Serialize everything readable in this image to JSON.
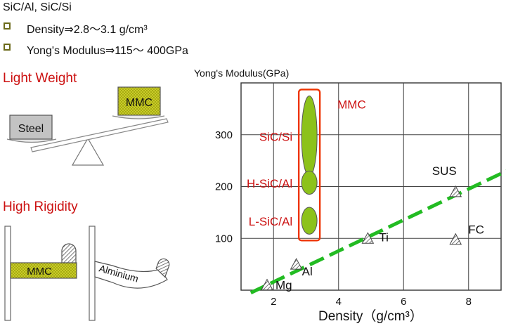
{
  "header": {
    "title": "SiC/Al,  SiC/Si"
  },
  "bullets": [
    {
      "text": "Density⇒2.8～3.1 g/cm³"
    },
    {
      "text": "Yong's Modulus⇒115～ 400GPa"
    }
  ],
  "light_weight": {
    "title": "Light Weight",
    "left_label": "Steel",
    "right_label": "MMC"
  },
  "high_rigidity": {
    "title": "High Rigidity",
    "beam1_label": "MMC",
    "beam2_label": "Alminium"
  },
  "colors": {
    "red": "#cc1111",
    "mmc_green": "#c8cc2a",
    "ellipse_green": "#8cc21a",
    "trend_green": "#22bb22"
  },
  "chart_data": {
    "type": "scatter",
    "ylabel": "Yong's Modulus(GPa)",
    "xlabel": "Density（g/cm³）",
    "xlim": [
      1,
      9
    ],
    "ylim": [
      0,
      400
    ],
    "x_ticks": [
      2,
      4,
      6,
      8
    ],
    "y_ticks": [
      100,
      200,
      300
    ],
    "grid": true,
    "points": [
      {
        "label": "Mg",
        "x": 1.8,
        "y": 10
      },
      {
        "label": "Al",
        "x": 2.7,
        "y": 50
      },
      {
        "label": "Ti",
        "x": 4.9,
        "y": 100
      },
      {
        "label": "SUS",
        "x": 7.6,
        "y": 190
      },
      {
        "label": "FC",
        "x": 7.6,
        "y": 98
      }
    ],
    "mmc_regions": [
      {
        "label": "SiC/Si",
        "x": 3.1,
        "y_min": 220,
        "y_max": 375
      },
      {
        "label": "H-SiC/Al",
        "x": 3.1,
        "y_min": 185,
        "y_max": 230
      },
      {
        "label": "L-SiC/Al",
        "x": 3.1,
        "y_min": 108,
        "y_max": 160
      }
    ],
    "mmc_group_label": "MMC",
    "trend_line": {
      "x": [
        1.3,
        9.5
      ],
      "y": [
        -5,
        240
      ]
    }
  }
}
